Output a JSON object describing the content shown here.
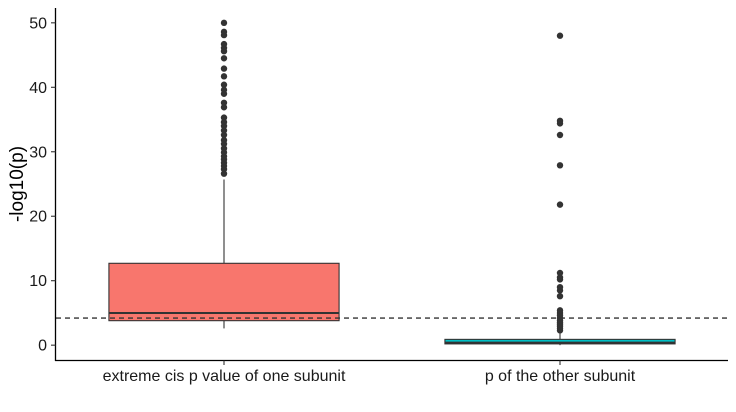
{
  "chart_data": {
    "type": "box",
    "title": "",
    "xlabel": "",
    "ylabel": "-log10(p)",
    "ylim": [
      -2.3,
      52.3
    ],
    "yticks": [
      0,
      10,
      20,
      30,
      40,
      50
    ],
    "grid": false,
    "legend": "none",
    "reference_line": {
      "y": 4.2,
      "style": "dashed",
      "color": "#333333"
    },
    "categories": [
      "extreme cis p value of one subunit",
      "p of the other subunit"
    ],
    "boxes": [
      {
        "category": "extreme cis p value of one subunit",
        "color": "#F8766D",
        "q1": 3.8,
        "median": 5.0,
        "q3": 12.7,
        "whisker_low": 2.6,
        "whisker_high": 25.7,
        "outliers": [
          26.6,
          27.3,
          27.8,
          28.3,
          28.8,
          29.3,
          29.9,
          30.5,
          31.2,
          31.8,
          32.6,
          33.3,
          34.0,
          34.6,
          35.3,
          36.9,
          37.6,
          39.0,
          39.6,
          40.4,
          41.7,
          42.9,
          44.5,
          45.6,
          46.1,
          46.7,
          48.1,
          48.6,
          50.0
        ]
      },
      {
        "category": "p of the other subunit",
        "color": "#00BFC4",
        "q1": 0.2,
        "median": 0.4,
        "q3": 0.9,
        "whisker_low": 0.0,
        "whisker_high": 2.1,
        "outliers": [
          2.3,
          2.6,
          2.9,
          3.2,
          3.5,
          3.8,
          4.2,
          4.6,
          5.0,
          5.4,
          7.6,
          8.5,
          9.0,
          10.2,
          10.5,
          11.2,
          21.8,
          27.9,
          32.6,
          34.4,
          34.8,
          48.0
        ]
      }
    ]
  }
}
